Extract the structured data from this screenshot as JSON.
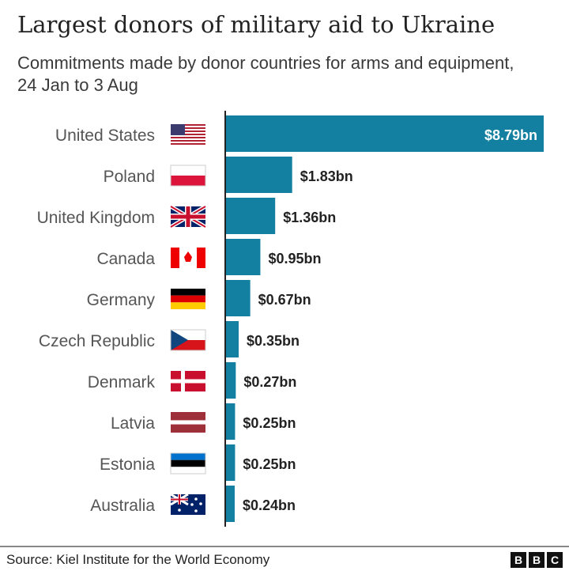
{
  "title": "Largest donors of military aid to Ukraine",
  "subtitle": "Commitments made by donor countries for arms and equipment, 24 Jan to 3 Aug",
  "source": "Source: Kiel Institute for the World Economy",
  "logo": "BBC",
  "colors": {
    "bar": "#1380A1",
    "label": "#222222",
    "category": "#555555"
  },
  "chart_data": {
    "type": "bar",
    "orientation": "horizontal",
    "categories": [
      "United States",
      "Poland",
      "United Kingdom",
      "Canada",
      "Germany",
      "Czech Republic",
      "Denmark",
      "Latvia",
      "Estonia",
      "Australia"
    ],
    "flags": [
      "us-flag-icon",
      "poland-flag-icon",
      "uk-flag-icon",
      "canada-flag-icon",
      "germany-flag-icon",
      "czech-flag-icon",
      "denmark-flag-icon",
      "latvia-flag-icon",
      "estonia-flag-icon",
      "australia-flag-icon"
    ],
    "values": [
      8.79,
      1.83,
      1.36,
      0.95,
      0.67,
      0.35,
      0.27,
      0.25,
      0.25,
      0.24
    ],
    "data_labels": [
      "$8.79bn",
      "$1.83bn",
      "$1.36bn",
      "$0.95bn",
      "$0.67bn",
      "$0.35bn",
      "$0.27bn",
      "$0.25bn",
      "$0.25bn",
      "$0.24bn"
    ],
    "unit": "$bn",
    "xlim": [
      0,
      8.79
    ],
    "grid": false
  }
}
